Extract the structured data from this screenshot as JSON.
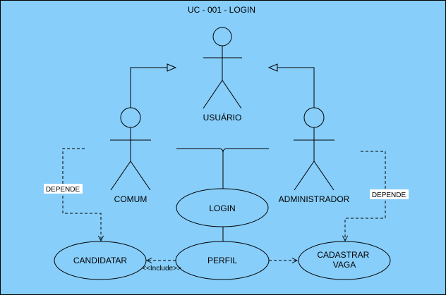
{
  "colors": {
    "background": "#87cefa",
    "frame": "#000000",
    "line": "#000000",
    "label_bg": "#ffffff"
  },
  "diagram": {
    "title": "UC - 001 - LOGIN",
    "actors": {
      "usuario": "USUÁRIO",
      "comum": "COMUM",
      "administrador": "ADMINISTRADOR"
    },
    "use_cases": {
      "login": "LOGIN",
      "perfil": "PERFIL",
      "candidatar": "CANDIDATAR",
      "cadastrar_vaga_line1": "CADASTRAR",
      "cadastrar_vaga_line2": "VAGA"
    },
    "relations": {
      "depende_left": "DEPENDE",
      "depende_right": "DEPENDE",
      "include": "<<Include>>"
    }
  }
}
